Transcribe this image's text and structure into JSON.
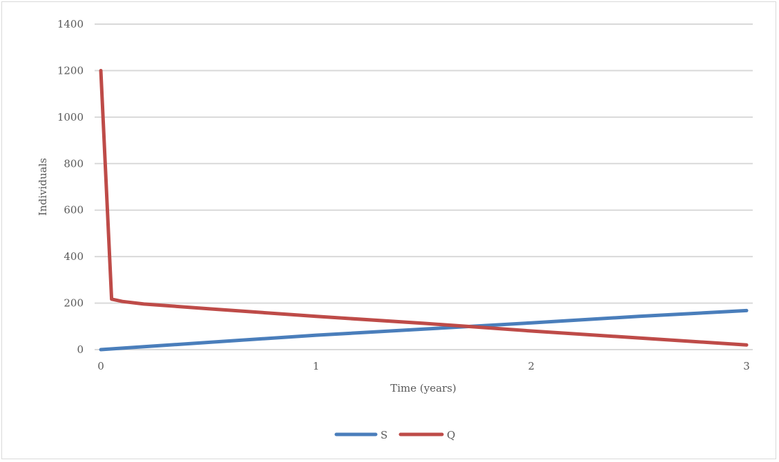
{
  "chart_data": {
    "type": "line",
    "title": "",
    "xlabel": "Time (years)",
    "ylabel": "Individuals",
    "xlim": [
      0,
      3
    ],
    "ylim": [
      0,
      1400
    ],
    "x_ticks": [
      0,
      1,
      2,
      3
    ],
    "y_ticks": [
      0,
      200,
      400,
      600,
      800,
      1000,
      1200,
      1400
    ],
    "grid": "horizontal",
    "legend_position": "bottom",
    "series": [
      {
        "name": "S",
        "color": "#4a7ebb",
        "x": [
          0,
          0.5,
          1,
          1.5,
          2,
          2.5,
          3
        ],
        "y": [
          0,
          31,
          62,
          88,
          115,
          143,
          168
        ]
      },
      {
        "name": "Q",
        "color": "#be4b48",
        "x": [
          0,
          0.05,
          0.1,
          0.2,
          0.5,
          1,
          1.5,
          1.7,
          2,
          2.5,
          3
        ],
        "y": [
          1200,
          217,
          207,
          196,
          176,
          143,
          113,
          100,
          80,
          50,
          20
        ]
      }
    ]
  }
}
